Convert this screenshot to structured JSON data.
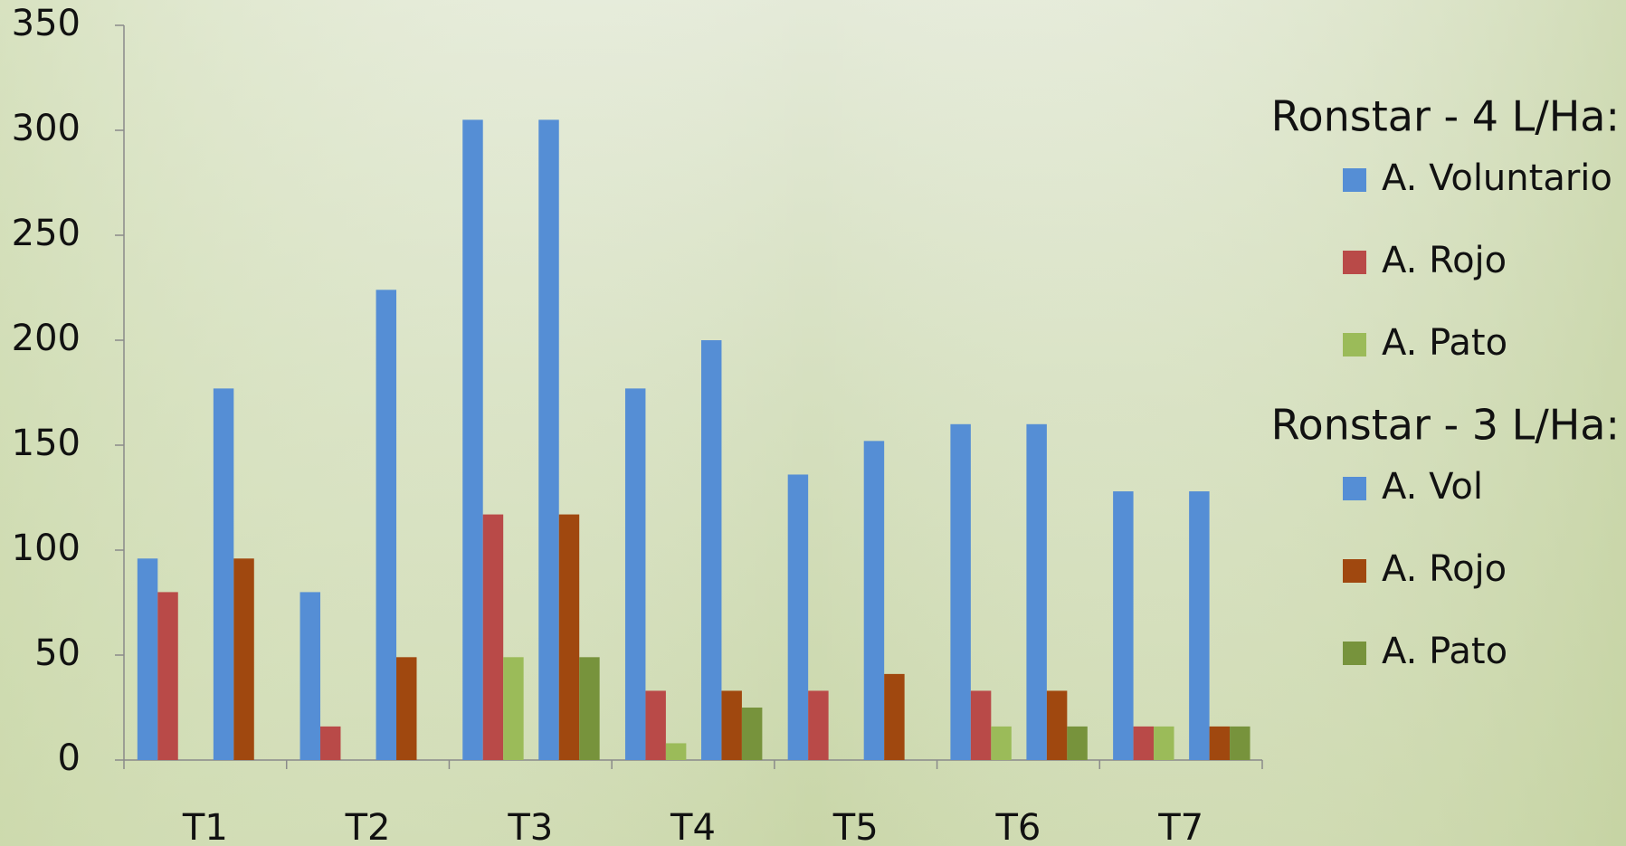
{
  "chart_data": {
    "type": "bar",
    "categories": [
      "T1",
      "T2",
      "T3",
      "T4",
      "T5",
      "T6",
      "T7"
    ],
    "legend_titles": [
      "Ronstar - 4 L/Ha:",
      "Ronstar - 3 L/Ha:"
    ],
    "series": [
      {
        "name": "A. Voluntario",
        "color": "#558ed5",
        "values": [
          96,
          80,
          305,
          177,
          136,
          160,
          128
        ]
      },
      {
        "name": "A. Rojo",
        "color": "#b94a48",
        "values": [
          80,
          16,
          117,
          33,
          33,
          33,
          16
        ]
      },
      {
        "name": "A. Pato",
        "color": "#9bbb59",
        "values": [
          0,
          0,
          49,
          8,
          0,
          16,
          16
        ]
      },
      {
        "name": "A. Vol",
        "color": "#558ed5",
        "values": [
          177,
          224,
          305,
          200,
          152,
          160,
          128
        ]
      },
      {
        "name": "A. Rojo",
        "color": "#a0480f",
        "values": [
          96,
          49,
          117,
          33,
          41,
          33,
          16
        ]
      },
      {
        "name": "A. Pato",
        "color": "#77933c",
        "values": [
          0,
          0,
          49,
          25,
          0,
          16,
          16
        ]
      }
    ],
    "ylim": [
      0,
      350
    ],
    "yticks": [
      0,
      50,
      100,
      150,
      200,
      250,
      300,
      350
    ],
    "grid": false
  }
}
